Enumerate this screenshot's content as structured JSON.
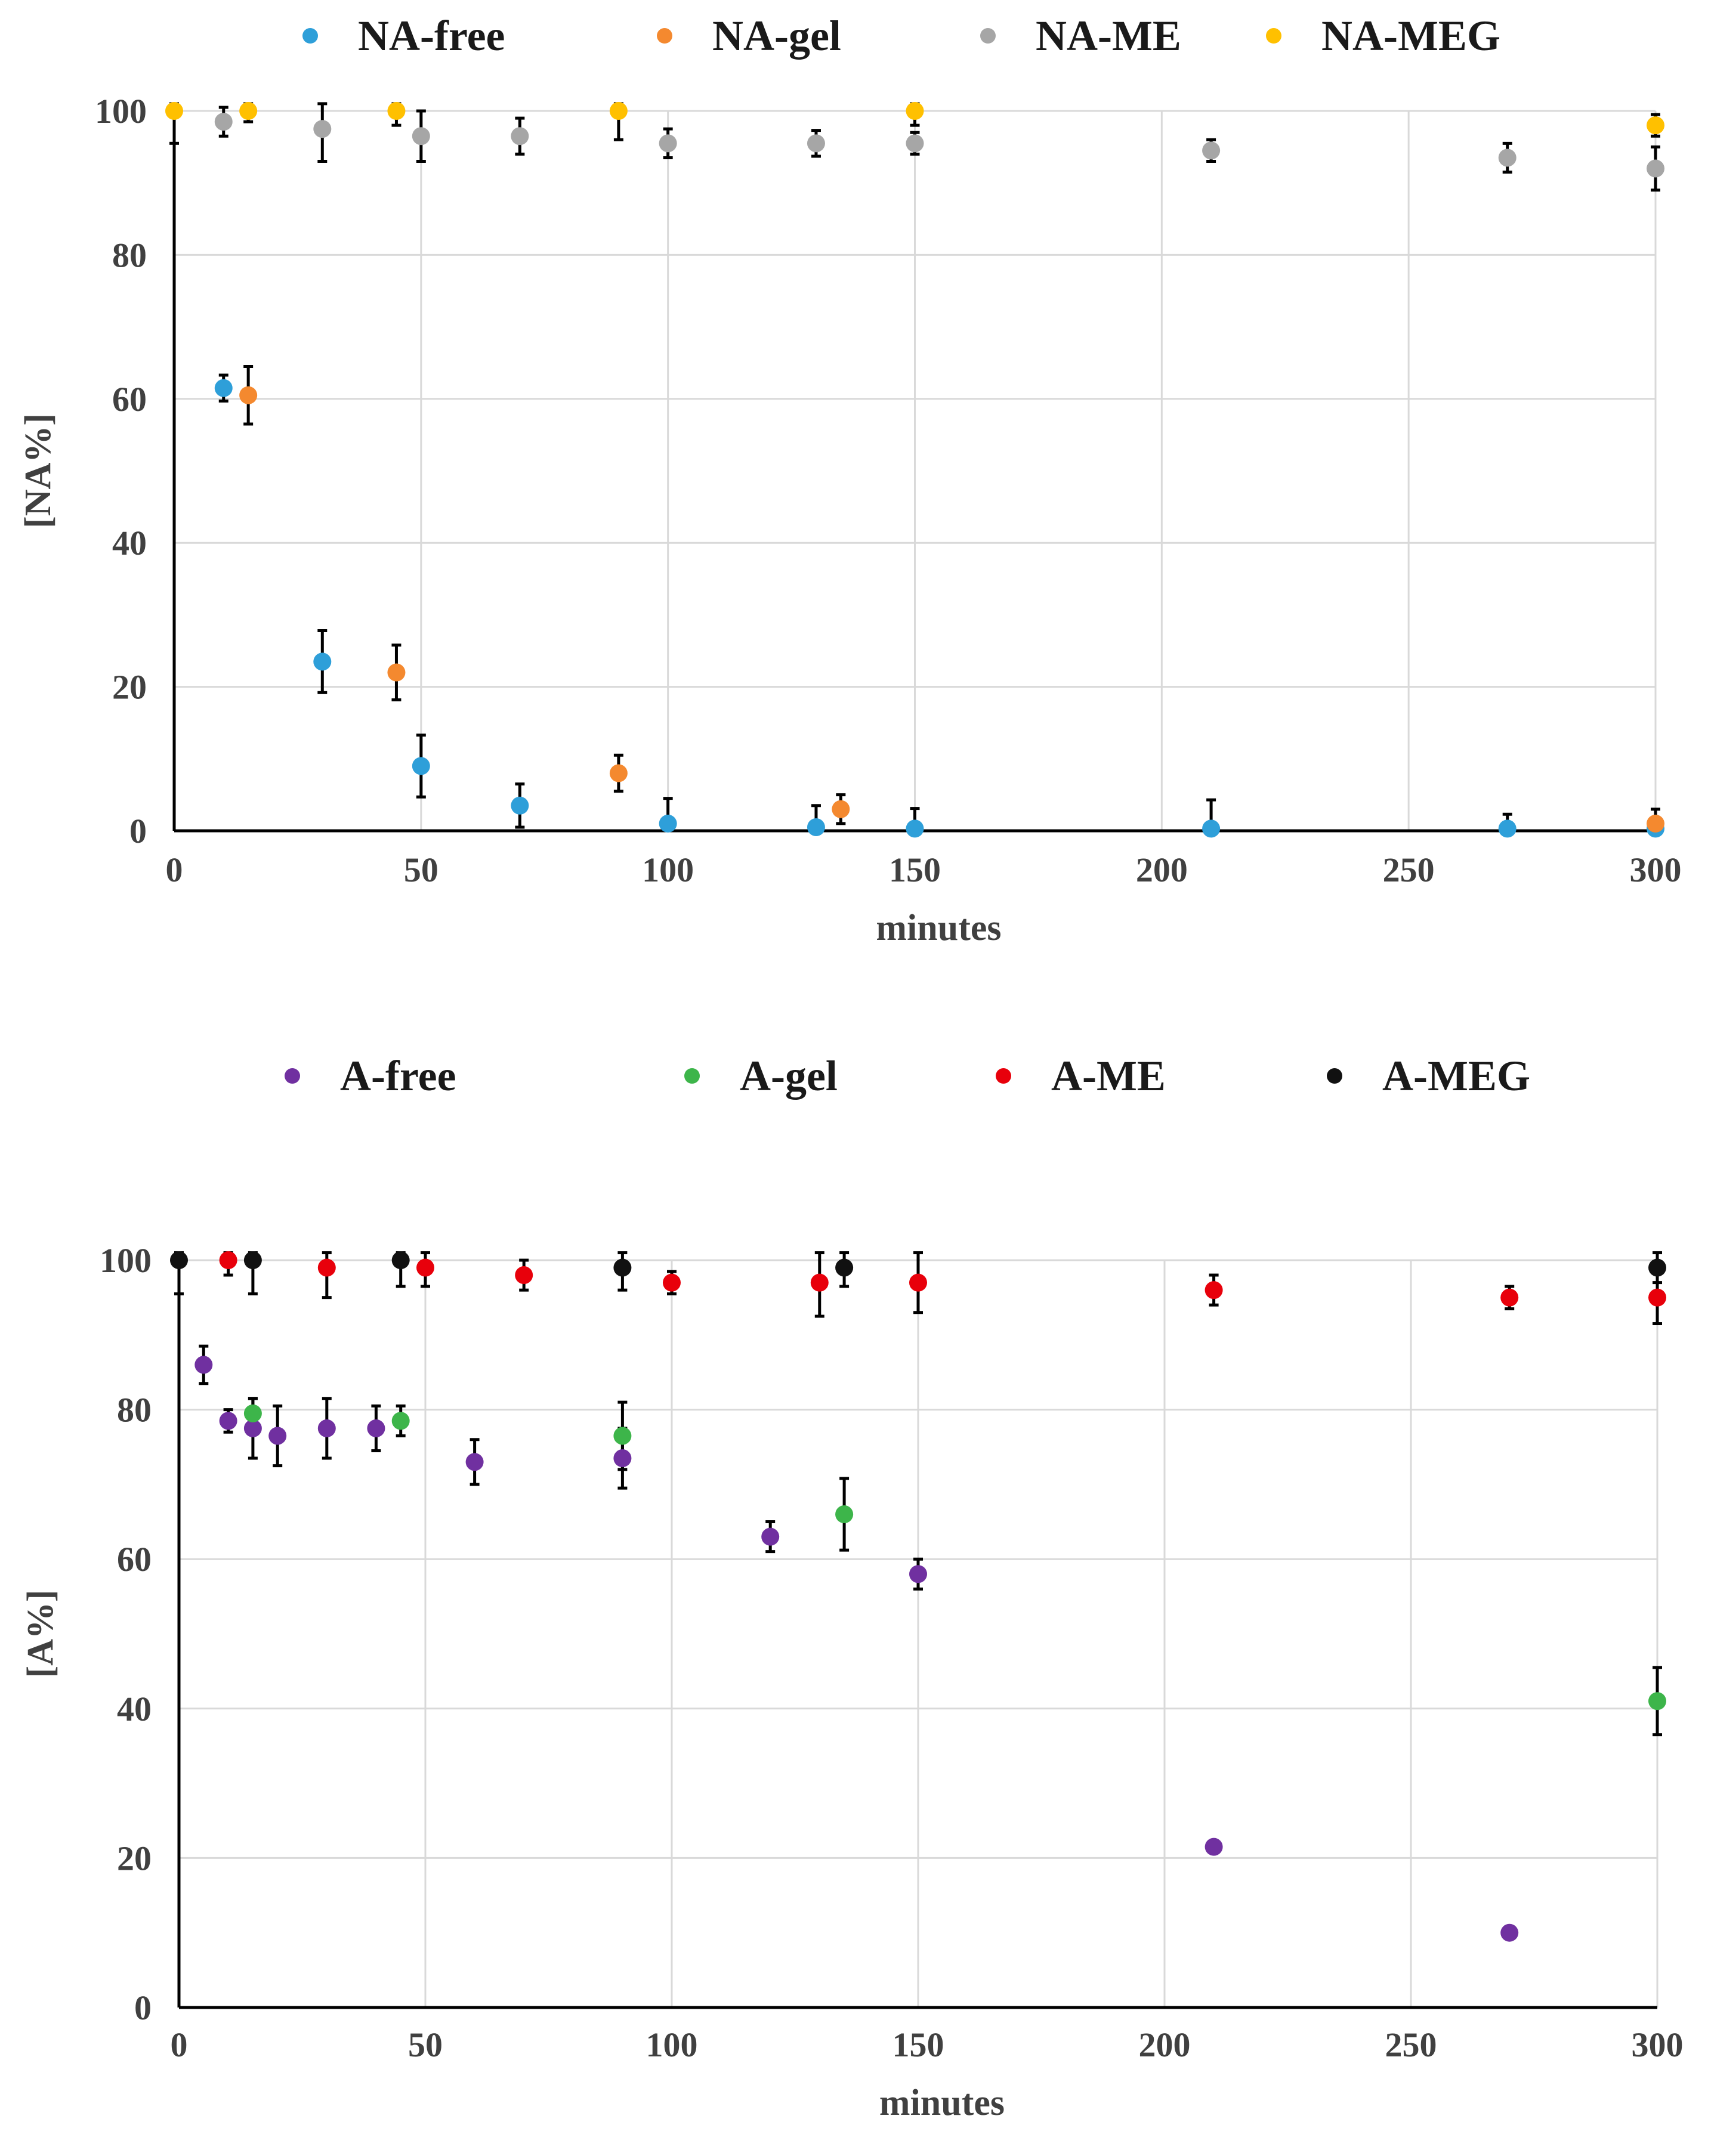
{
  "chart_data": [
    {
      "type": "scatter",
      "title": "",
      "xlabel": "minutes",
      "ylabel": "[NA%]",
      "xlim": [
        0,
        300
      ],
      "ylim": [
        0,
        100
      ],
      "xticks": [
        0,
        50,
        100,
        150,
        200,
        250,
        300
      ],
      "yticks": [
        0,
        20,
        40,
        60,
        80,
        100
      ],
      "grid": true,
      "legend_position": "top",
      "series": [
        {
          "name": "NA-free",
          "color": "#2E9FD9",
          "points": [
            {
              "x": 10,
              "y": 61.5,
              "err": 1.8
            },
            {
              "x": 30,
              "y": 23.5,
              "err": 4.3
            },
            {
              "x": 50,
              "y": 9,
              "err": 4.3
            },
            {
              "x": 70,
              "y": 3.5,
              "err": 3
            },
            {
              "x": 100,
              "y": 1,
              "err": 3.5
            },
            {
              "x": 130,
              "y": 0.5,
              "err": 3
            },
            {
              "x": 150,
              "y": 0.3,
              "err": 2.8
            },
            {
              "x": 210,
              "y": 0.3,
              "err": 4
            },
            {
              "x": 270,
              "y": 0.3,
              "err": 2
            },
            {
              "x": 300,
              "y": 0.3,
              "err": 0
            }
          ]
        },
        {
          "name": "NA-gel",
          "color": "#F4892F",
          "points": [
            {
              "x": 15,
              "y": 60.5,
              "err": 4
            },
            {
              "x": 45,
              "y": 22,
              "err": 3.8
            },
            {
              "x": 90,
              "y": 8,
              "err": 2.5
            },
            {
              "x": 135,
              "y": 3,
              "err": 2
            },
            {
              "x": 300,
              "y": 1,
              "err": 2
            }
          ]
        },
        {
          "name": "NA-ME",
          "color": "#A6A6A6",
          "points": [
            {
              "x": 10,
              "y": 98.5,
              "err": 2
            },
            {
              "x": 30,
              "y": 97.5,
              "err": 4.5
            },
            {
              "x": 50,
              "y": 96.5,
              "err": 3.5
            },
            {
              "x": 70,
              "y": 96.5,
              "err": 2.5
            },
            {
              "x": 100,
              "y": 95.5,
              "err": 2
            },
            {
              "x": 130,
              "y": 95.5,
              "err": 1.8
            },
            {
              "x": 150,
              "y": 95.5,
              "err": 1.5
            },
            {
              "x": 210,
              "y": 94.5,
              "err": 1.5
            },
            {
              "x": 270,
              "y": 93.5,
              "err": 2
            },
            {
              "x": 300,
              "y": 92,
              "err": 3
            }
          ]
        },
        {
          "name": "NA-MEG",
          "color": "#FFC000",
          "points": [
            {
              "x": 0,
              "y": 100,
              "err": 4.5
            },
            {
              "x": 15,
              "y": 100,
              "err": 1.5
            },
            {
              "x": 45,
              "y": 100,
              "err": 2
            },
            {
              "x": 90,
              "y": 100,
              "err": 4
            },
            {
              "x": 150,
              "y": 100,
              "err": 2
            },
            {
              "x": 300,
              "y": 98,
              "err": 1.5
            }
          ]
        }
      ]
    },
    {
      "type": "scatter",
      "title": "",
      "xlabel": "minutes",
      "ylabel": "[A%]",
      "xlim": [
        0,
        300
      ],
      "ylim": [
        0,
        100
      ],
      "xticks": [
        0,
        50,
        100,
        150,
        200,
        250,
        300
      ],
      "yticks": [
        0,
        20,
        40,
        60,
        80,
        100
      ],
      "grid": true,
      "legend_position": "top",
      "series": [
        {
          "name": "A-free",
          "color": "#7030A0",
          "points": [
            {
              "x": 5,
              "y": 86,
              "err": 2.5
            },
            {
              "x": 10,
              "y": 78.5,
              "err": 1.5
            },
            {
              "x": 15,
              "y": 77.5,
              "err": 4
            },
            {
              "x": 20,
              "y": 76.5,
              "err": 4
            },
            {
              "x": 30,
              "y": 77.5,
              "err": 4
            },
            {
              "x": 40,
              "y": 77.5,
              "err": 3
            },
            {
              "x": 60,
              "y": 73,
              "err": 3
            },
            {
              "x": 90,
              "y": 73.5,
              "err": 4
            },
            {
              "x": 120,
              "y": 63,
              "err": 2
            },
            {
              "x": 150,
              "y": 58,
              "err": 2
            },
            {
              "x": 210,
              "y": 21.5,
              "err": 0
            },
            {
              "x": 270,
              "y": 10,
              "err": 0
            }
          ]
        },
        {
          "name": "A-gel",
          "color": "#3DB54A",
          "points": [
            {
              "x": 15,
              "y": 79.5,
              "err": 2
            },
            {
              "x": 45,
              "y": 78.5,
              "err": 2
            },
            {
              "x": 90,
              "y": 76.5,
              "err": 4.5
            },
            {
              "x": 135,
              "y": 66,
              "err": 4.8
            },
            {
              "x": 300,
              "y": 41,
              "err": 4.5
            }
          ]
        },
        {
          "name": "A-ME",
          "color": "#E8000B",
          "points": [
            {
              "x": 10,
              "y": 100,
              "err": 2
            },
            {
              "x": 30,
              "y": 99,
              "err": 4
            },
            {
              "x": 50,
              "y": 99,
              "err": 2.5
            },
            {
              "x": 70,
              "y": 98,
              "err": 2
            },
            {
              "x": 100,
              "y": 97,
              "err": 1.5
            },
            {
              "x": 130,
              "y": 97,
              "err": 4.5
            },
            {
              "x": 150,
              "y": 97,
              "err": 4
            },
            {
              "x": 210,
              "y": 96,
              "err": 2
            },
            {
              "x": 270,
              "y": 95,
              "err": 1.5
            },
            {
              "x": 300,
              "y": 95,
              "err": 3.5
            }
          ]
        },
        {
          "name": "A-MEG",
          "color": "#111111",
          "points": [
            {
              "x": 0,
              "y": 100,
              "err": 4.5
            },
            {
              "x": 15,
              "y": 100,
              "err": 4.5
            },
            {
              "x": 45,
              "y": 100,
              "err": 3.5
            },
            {
              "x": 90,
              "y": 99,
              "err": 3
            },
            {
              "x": 135,
              "y": 99,
              "err": 2.5
            },
            {
              "x": 300,
              "y": 99,
              "err": 2
            }
          ]
        }
      ]
    }
  ]
}
